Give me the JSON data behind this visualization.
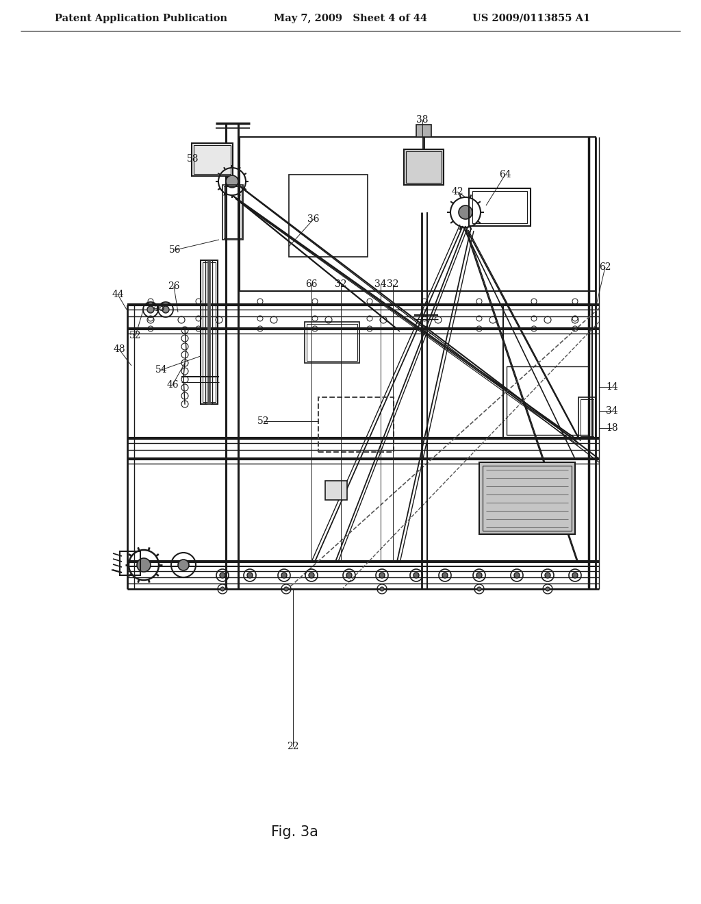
{
  "title_left": "Patent Application Publication",
  "title_center": "May 7, 2009   Sheet 4 of 44",
  "title_right": "US 2009/0113855 A1",
  "fig_label": "Fig. 3a",
  "bg_color": "#ffffff",
  "lc": "#1a1a1a",
  "header_fontsize": 10.5,
  "fig_label_fontsize": 15
}
